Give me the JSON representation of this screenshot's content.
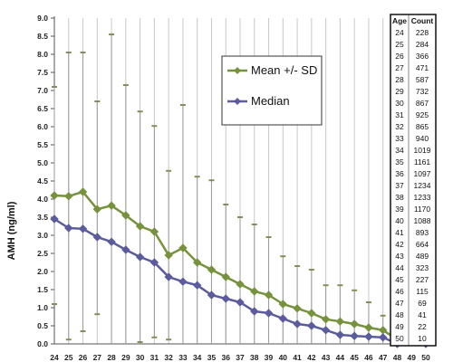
{
  "chart_data": {
    "type": "line",
    "ylabel": "AMH (ng/ml)",
    "ylim": [
      0,
      9
    ],
    "y_ticks": [
      "0.0",
      "0.5",
      "1.0",
      "1.5",
      "2.0",
      "2.5",
      "3.0",
      "3.5",
      "4.0",
      "4.5",
      "5.0",
      "5.5",
      "6.0",
      "6.5",
      "7.0",
      "7.5",
      "8.0",
      "8.5",
      "9.0"
    ],
    "x": [
      24,
      25,
      26,
      27,
      28,
      29,
      30,
      31,
      32,
      33,
      34,
      35,
      36,
      37,
      38,
      39,
      40,
      41,
      42,
      43,
      44,
      45,
      46,
      47,
      48,
      49,
      50
    ],
    "x_ticks": [
      "24",
      "25",
      "26",
      "27",
      "28",
      "29",
      "30",
      "31",
      "32",
      "33",
      "34",
      "35",
      "36",
      "37",
      "38",
      "39",
      "40",
      "41",
      "42",
      "43",
      "44",
      "45",
      "46",
      "47",
      "48",
      "49",
      "50"
    ],
    "grid": "vertical",
    "legend_position": "top-center",
    "series": [
      {
        "name": "Mean +/- SD",
        "color": "#77923c",
        "marker": "diamond",
        "values": [
          4.1,
          4.08,
          4.2,
          3.72,
          3.82,
          3.55,
          3.25,
          3.1,
          2.45,
          2.65,
          2.25,
          2.05,
          1.85,
          1.65,
          1.45,
          1.35,
          1.1,
          0.98,
          0.85,
          0.68,
          0.62,
          0.55,
          0.45,
          0.38,
          0.12,
          0.12,
          0.02
        ],
        "sd_upper": [
          7.1,
          8.05,
          8.05,
          6.7,
          8.55,
          7.15,
          6.42,
          6.02,
          4.78,
          6.6,
          4.62,
          4.52,
          3.85,
          3.5,
          3.3,
          2.95,
          2.42,
          2.15,
          2.05,
          1.62,
          1.62,
          1.48,
          1.15,
          0.78,
          0.45,
          0.25,
          0.05
        ],
        "sd_lower": [
          1.1,
          0.12,
          0.35,
          0.82,
          0.0,
          0.0,
          0.05,
          0.18,
          0.12,
          0.0,
          0.0,
          0.0,
          0.0,
          0.0,
          0.0,
          0.0,
          0.0,
          0.0,
          0.0,
          0.0,
          0.0,
          0.0,
          0.0,
          0.0,
          0.0,
          0.0,
          0.0
        ]
      },
      {
        "name": "Median",
        "color": "#5b5b9e",
        "marker": "diamond",
        "values": [
          3.45,
          3.2,
          3.18,
          2.95,
          2.82,
          2.6,
          2.4,
          2.25,
          1.85,
          1.72,
          1.62,
          1.35,
          1.25,
          1.15,
          0.9,
          0.85,
          0.7,
          0.55,
          0.5,
          0.38,
          0.25,
          0.22,
          0.2,
          0.18,
          0.0,
          0.05,
          0.0
        ]
      }
    ],
    "table": {
      "headers": [
        "Age",
        "Count"
      ],
      "rows": [
        [
          "24",
          "228"
        ],
        [
          "25",
          "284"
        ],
        [
          "26",
          "366"
        ],
        [
          "27",
          "471"
        ],
        [
          "28",
          "587"
        ],
        [
          "29",
          "732"
        ],
        [
          "30",
          "867"
        ],
        [
          "31",
          "925"
        ],
        [
          "32",
          "865"
        ],
        [
          "33",
          "940"
        ],
        [
          "34",
          "1019"
        ],
        [
          "35",
          "1161"
        ],
        [
          "36",
          "1097"
        ],
        [
          "37",
          "1234"
        ],
        [
          "38",
          "1233"
        ],
        [
          "39",
          "1170"
        ],
        [
          "40",
          "1088"
        ],
        [
          "41",
          "893"
        ],
        [
          "42",
          "664"
        ],
        [
          "43",
          "489"
        ],
        [
          "44",
          "323"
        ],
        [
          "45",
          "227"
        ],
        [
          "46",
          "115"
        ],
        [
          "47",
          "69"
        ],
        [
          "48",
          "41"
        ],
        [
          "49",
          "22"
        ],
        [
          "50",
          "10"
        ]
      ]
    }
  }
}
